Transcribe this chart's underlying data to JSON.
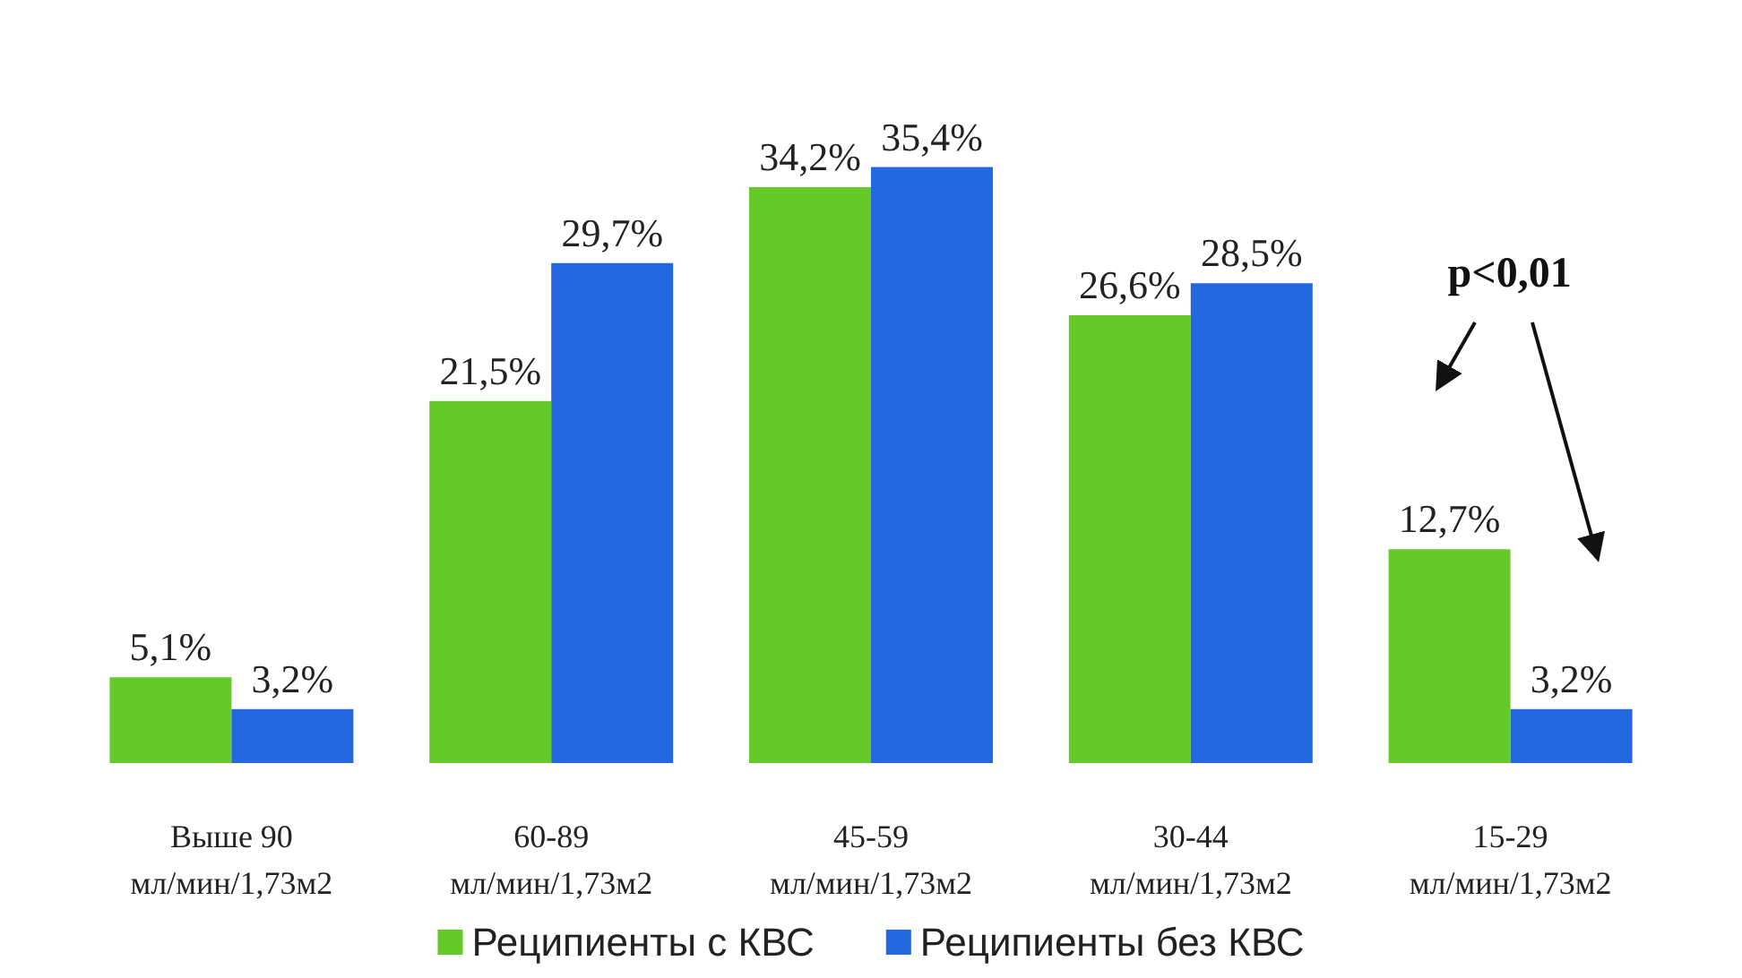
{
  "chart_data": {
    "type": "bar",
    "categories": [
      "Выше 90\nмл/мин/1,73м2",
      "60-89\nмл/мин/1,73м2",
      "45-59\nмл/мин/1,73м2",
      "30-44\nмл/мин/1,73м2",
      "15-29\nмл/мин/1,73м2"
    ],
    "series": [
      {
        "name": "Реципиенты с КВС",
        "color": "#66c92a",
        "values": [
          5.1,
          21.5,
          34.2,
          26.6,
          12.7
        ],
        "value_labels": [
          "5,1%",
          "21,5%",
          "34,2%",
          "26,6%",
          "12,7%"
        ]
      },
      {
        "name": "Реципиенты без КВС",
        "color": "#2468e0",
        "values": [
          3.2,
          29.7,
          35.4,
          28.5,
          3.2
        ],
        "value_labels": [
          "3,2%",
          "29,7%",
          "35,4%",
          "28,5%",
          "3,2%"
        ]
      }
    ],
    "annotations": [
      "p<0,01"
    ],
    "legend": "bottom"
  }
}
